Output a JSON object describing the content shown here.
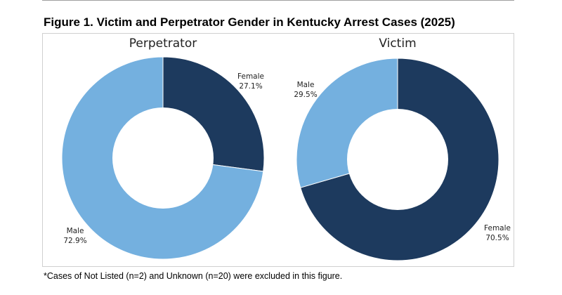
{
  "figure": {
    "title": "Figure 1. Victim and Perpetrator Gender in Kentucky Arrest Cases (2025)",
    "footnote": "*Cases of Not Listed (n=2) and Unknown (n=20) were excluded in this figure."
  },
  "colors": {
    "female": "#1d3a5e",
    "male": "#74b0df",
    "hole": "#ffffff"
  },
  "chart_data": [
    {
      "type": "pie",
      "title": "Perpetrator",
      "slices": [
        {
          "label": "Female",
          "value": 27.1,
          "value_label": "27.1%",
          "color": "#1d3a5e"
        },
        {
          "label": "Male",
          "value": 72.9,
          "value_label": "72.9%",
          "color": "#74b0df"
        }
      ]
    },
    {
      "type": "pie",
      "title": "Victim",
      "slices": [
        {
          "label": "Female",
          "value": 70.5,
          "value_label": "70.5%",
          "color": "#1d3a5e"
        },
        {
          "label": "Male",
          "value": 29.5,
          "value_label": "29.5%",
          "color": "#74b0df"
        }
      ]
    }
  ]
}
